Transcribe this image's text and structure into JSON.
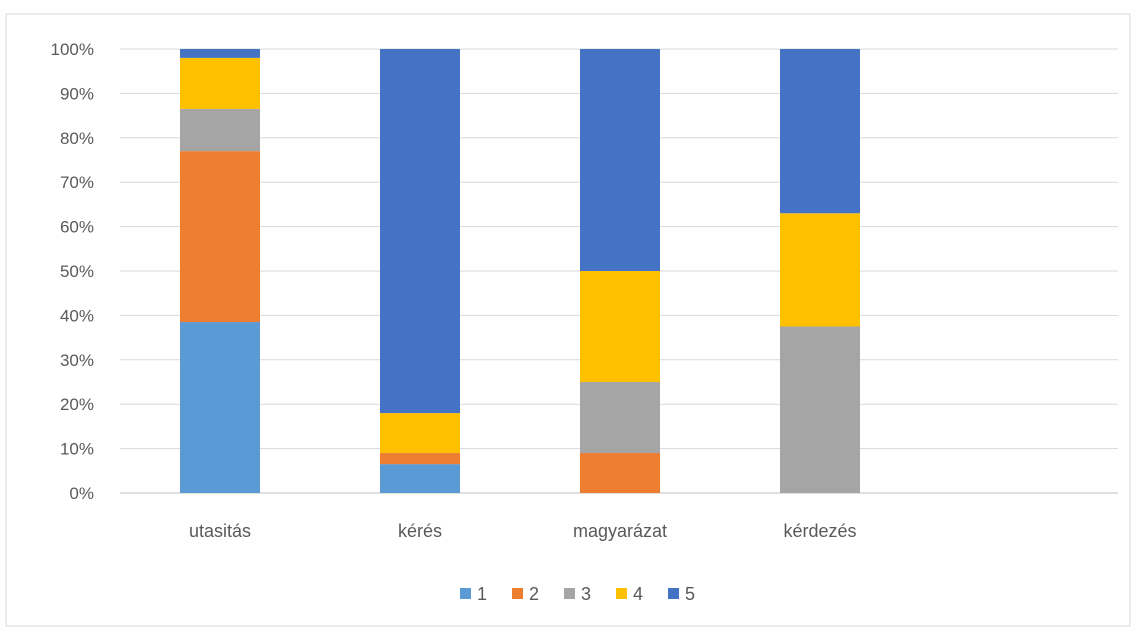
{
  "chart_data": {
    "type": "bar",
    "stacked": "percent",
    "categories": [
      "utasitás",
      "kérés",
      "magyarázat",
      "kérdezés"
    ],
    "series": [
      {
        "name": "1",
        "color": "#5B9BD5",
        "values": [
          38.5,
          6.5,
          0,
          0
        ]
      },
      {
        "name": "2",
        "color": "#ED7D31",
        "values": [
          38.5,
          2.5,
          9,
          0
        ]
      },
      {
        "name": "3",
        "color": "#A5A5A5",
        "values": [
          9.5,
          0,
          16,
          37.5
        ]
      },
      {
        "name": "4",
        "color": "#FFC000",
        "values": [
          11.5,
          9,
          25,
          25.5
        ]
      },
      {
        "name": "5",
        "color": "#4472C4",
        "values": [
          2,
          82,
          50,
          37
        ]
      }
    ],
    "y_ticks": [
      "0%",
      "10%",
      "20%",
      "30%",
      "40%",
      "50%",
      "60%",
      "70%",
      "80%",
      "90%",
      "100%"
    ],
    "ylim": [
      0,
      100
    ],
    "title": "",
    "xlabel": "",
    "ylabel": "",
    "grid": true,
    "legend_position": "bottom"
  }
}
